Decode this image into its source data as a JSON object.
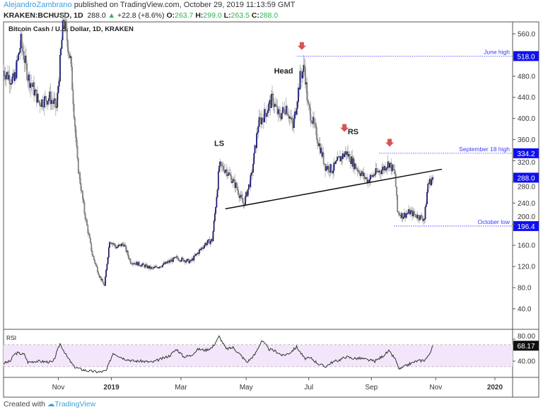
{
  "header": {
    "author": "AlejandroZambrano",
    "published": "published on TradingView.com, October 29, 2019 11:13:59 GMT",
    "symbol": "KRAKEN:BCHUSD, 1D",
    "last": "288.0",
    "change": "+22.8 (+8.6%)",
    "o_label": "O:",
    "o": "263.7",
    "h_label": "H:",
    "h": "299.0",
    "l_label": "L:",
    "l": "263.5",
    "c_label": "C:",
    "c": "288.0"
  },
  "footer": {
    "created": "Created with",
    "brand": "TradingView"
  },
  "colors": {
    "up": "#1a1aa6",
    "down": "#8a8a8a",
    "level": "#3a3aff",
    "arrow": "#d9534f",
    "rsi_band": "#f3e6fb"
  },
  "chart_data": {
    "type": "candlestick",
    "title": "Bitcoin Cash / U.S. Dollar, 1D, KRAKEN",
    "x_unit": "days since 2018-08-30",
    "price_ticks": [
      "560.0",
      "480.0",
      "440.0",
      "400.0",
      "360.0",
      "320.0",
      "280.0",
      "240.0",
      "200.0",
      "160.0",
      "120.0",
      "80.0",
      "40.0"
    ],
    "price_tick_values": [
      560,
      480,
      440,
      400,
      360,
      320,
      280,
      240,
      200,
      160,
      120,
      80,
      40
    ],
    "ylim": [
      12,
      595
    ],
    "time_ticks": [
      {
        "label": "Nov",
        "day": 63,
        "bold": false
      },
      {
        "label": "2019",
        "day": 124,
        "bold": true
      },
      {
        "label": "Mar",
        "day": 204,
        "bold": false
      },
      {
        "label": "May",
        "day": 279,
        "bold": false
      },
      {
        "label": "Jul",
        "day": 351,
        "bold": false
      },
      {
        "label": "Sep",
        "day": 423,
        "bold": false
      },
      {
        "label": "Nov",
        "day": 497,
        "bold": false
      },
      {
        "label": "2020",
        "day": 565,
        "bold": true
      }
    ],
    "close_path": [
      [
        0,
        490
      ],
      [
        12,
        470
      ],
      [
        20,
        545
      ],
      [
        28,
        480
      ],
      [
        41,
        430
      ],
      [
        53,
        440
      ],
      [
        61,
        420
      ],
      [
        69,
        590
      ],
      [
        77,
        510
      ],
      [
        85,
        316
      ],
      [
        93,
        223
      ],
      [
        102,
        143
      ],
      [
        110,
        103
      ],
      [
        116,
        83
      ],
      [
        122,
        170
      ],
      [
        130,
        156
      ],
      [
        138,
        163
      ],
      [
        146,
        129
      ],
      [
        159,
        123
      ],
      [
        171,
        116
      ],
      [
        183,
        123
      ],
      [
        199,
        136
      ],
      [
        215,
        129
      ],
      [
        232,
        163
      ],
      [
        240,
        170
      ],
      [
        244,
        236
      ],
      [
        248,
        310
      ],
      [
        256,
        303
      ],
      [
        268,
        270
      ],
      [
        276,
        236
      ],
      [
        285,
        290
      ],
      [
        293,
        390
      ],
      [
        301,
        410
      ],
      [
        309,
        437
      ],
      [
        317,
        403
      ],
      [
        325,
        423
      ],
      [
        333,
        383
      ],
      [
        341,
        477
      ],
      [
        346,
        497
      ],
      [
        350,
        423
      ],
      [
        354,
        403
      ],
      [
        362,
        356
      ],
      [
        370,
        310
      ],
      [
        378,
        303
      ],
      [
        386,
        323
      ],
      [
        394,
        336
      ],
      [
        402,
        316
      ],
      [
        411,
        296
      ],
      [
        419,
        283
      ],
      [
        427,
        296
      ],
      [
        435,
        303
      ],
      [
        443,
        316
      ],
      [
        450,
        296
      ],
      [
        453,
        223
      ],
      [
        459,
        216
      ],
      [
        467,
        223
      ],
      [
        475,
        216
      ],
      [
        484,
        210
      ],
      [
        488,
        276
      ],
      [
        494,
        288
      ]
    ],
    "levels": [
      {
        "label": "June high",
        "value": 518.0,
        "price_label": "518.0",
        "from_day": 338
      },
      {
        "label": "September 18 high",
        "value": 334.2,
        "price_label": "334.2",
        "from_day": 432
      },
      {
        "label": "October low",
        "value": 196.4,
        "price_label": "196.4",
        "from_day": 449
      }
    ],
    "last_price": {
      "value": 288.0,
      "label": "288.0"
    },
    "neckline": [
      [
        255,
        229
      ],
      [
        504,
        304
      ]
    ],
    "annotations": [
      {
        "text": "LS",
        "day": 248,
        "price": 348
      },
      {
        "text": "Head",
        "day": 322,
        "price": 485
      },
      {
        "text": "RS",
        "day": 402,
        "price": 370
      }
    ],
    "arrows": [
      {
        "day": 343,
        "price": 535
      },
      {
        "day": 392,
        "price": 380
      },
      {
        "day": 444,
        "price": 352
      }
    ],
    "rsi": {
      "label": "RSI",
      "ticks": [
        "80.00",
        "40.00"
      ],
      "tick_values": [
        80,
        40
      ],
      "band": [
        30,
        70
      ],
      "last": "68.17",
      "last_value": 68.17,
      "values": [
        [
          0,
          36
        ],
        [
          8,
          40
        ],
        [
          12,
          52
        ],
        [
          16,
          55
        ],
        [
          24,
          52
        ],
        [
          28,
          38
        ],
        [
          37,
          40
        ],
        [
          57,
          38
        ],
        [
          65,
          72
        ],
        [
          73,
          48
        ],
        [
          81,
          30
        ],
        [
          89,
          25
        ],
        [
          98,
          22
        ],
        [
          110,
          20
        ],
        [
          118,
          22
        ],
        [
          126,
          55
        ],
        [
          138,
          45
        ],
        [
          150,
          40
        ],
        [
          159,
          40
        ],
        [
          171,
          38
        ],
        [
          183,
          45
        ],
        [
          191,
          50
        ],
        [
          199,
          62
        ],
        [
          207,
          48
        ],
        [
          215,
          50
        ],
        [
          224,
          62
        ],
        [
          232,
          60
        ],
        [
          240,
          65
        ],
        [
          248,
          85
        ],
        [
          256,
          62
        ],
        [
          264,
          65
        ],
        [
          272,
          52
        ],
        [
          280,
          38
        ],
        [
          289,
          52
        ],
        [
          297,
          78
        ],
        [
          305,
          62
        ],
        [
          313,
          58
        ],
        [
          321,
          50
        ],
        [
          329,
          55
        ],
        [
          337,
          66
        ],
        [
          346,
          45
        ],
        [
          354,
          45
        ],
        [
          362,
          35
        ],
        [
          370,
          30
        ],
        [
          378,
          38
        ],
        [
          386,
          42
        ],
        [
          394,
          48
        ],
        [
          402,
          45
        ],
        [
          411,
          45
        ],
        [
          419,
          42
        ],
        [
          427,
          40
        ],
        [
          435,
          48
        ],
        [
          443,
          58
        ],
        [
          450,
          45
        ],
        [
          455,
          25
        ],
        [
          467,
          35
        ],
        [
          475,
          40
        ],
        [
          484,
          42
        ],
        [
          488,
          48
        ],
        [
          494,
          68
        ]
      ]
    }
  }
}
